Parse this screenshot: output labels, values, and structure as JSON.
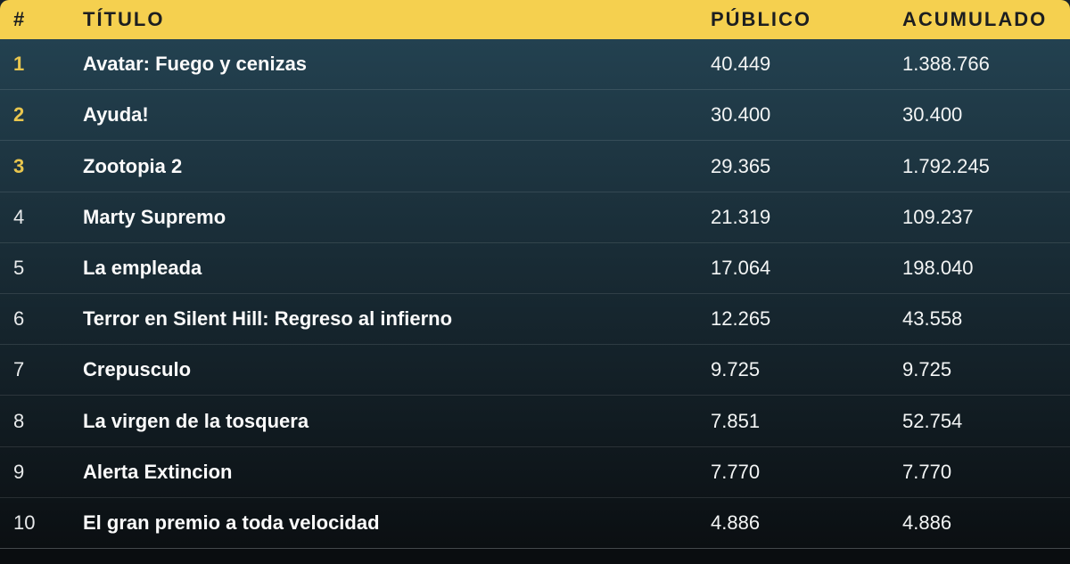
{
  "table": {
    "columns": [
      {
        "key": "rank",
        "label": "#"
      },
      {
        "key": "title",
        "label": "TÍTULO"
      },
      {
        "key": "publico",
        "label": "PÚBLICO"
      },
      {
        "key": "acumulado",
        "label": "ACUMULADO"
      }
    ],
    "rows": [
      {
        "rank": "1",
        "title": "Avatar: Fuego y cenizas",
        "publico": "40.449",
        "acumulado": "1.388.766",
        "highlight": true
      },
      {
        "rank": "2",
        "title": "Ayuda!",
        "publico": "30.400",
        "acumulado": "30.400",
        "highlight": true
      },
      {
        "rank": "3",
        "title": "Zootopia 2",
        "publico": "29.365",
        "acumulado": "1.792.245",
        "highlight": true
      },
      {
        "rank": "4",
        "title": "Marty Supremo",
        "publico": "21.319",
        "acumulado": "109.237",
        "highlight": false
      },
      {
        "rank": "5",
        "title": "La empleada",
        "publico": "17.064",
        "acumulado": "198.040",
        "highlight": false
      },
      {
        "rank": "6",
        "title": "Terror en Silent Hill: Regreso al infierno",
        "publico": "12.265",
        "acumulado": "43.558",
        "highlight": false
      },
      {
        "rank": "7",
        "title": "Crepusculo",
        "publico": "9.725",
        "acumulado": "9.725",
        "highlight": false
      },
      {
        "rank": "8",
        "title": "La virgen de la tosquera",
        "publico": "7.851",
        "acumulado": "52.754",
        "highlight": false
      },
      {
        "rank": "9",
        "title": "Alerta Extincion",
        "publico": "7.770",
        "acumulado": "7.770",
        "highlight": false
      },
      {
        "rank": "10",
        "title": "El gran premio a toda velocidad",
        "publico": "4.886",
        "acumulado": "4.886",
        "highlight": false
      }
    ],
    "colors": {
      "header_bg": "#f5d04f",
      "header_text": "#1c1e20",
      "rank_highlight": "#e9c64e",
      "body_gradient_top": "#234150",
      "body_gradient_bottom": "#0b0f12"
    }
  }
}
